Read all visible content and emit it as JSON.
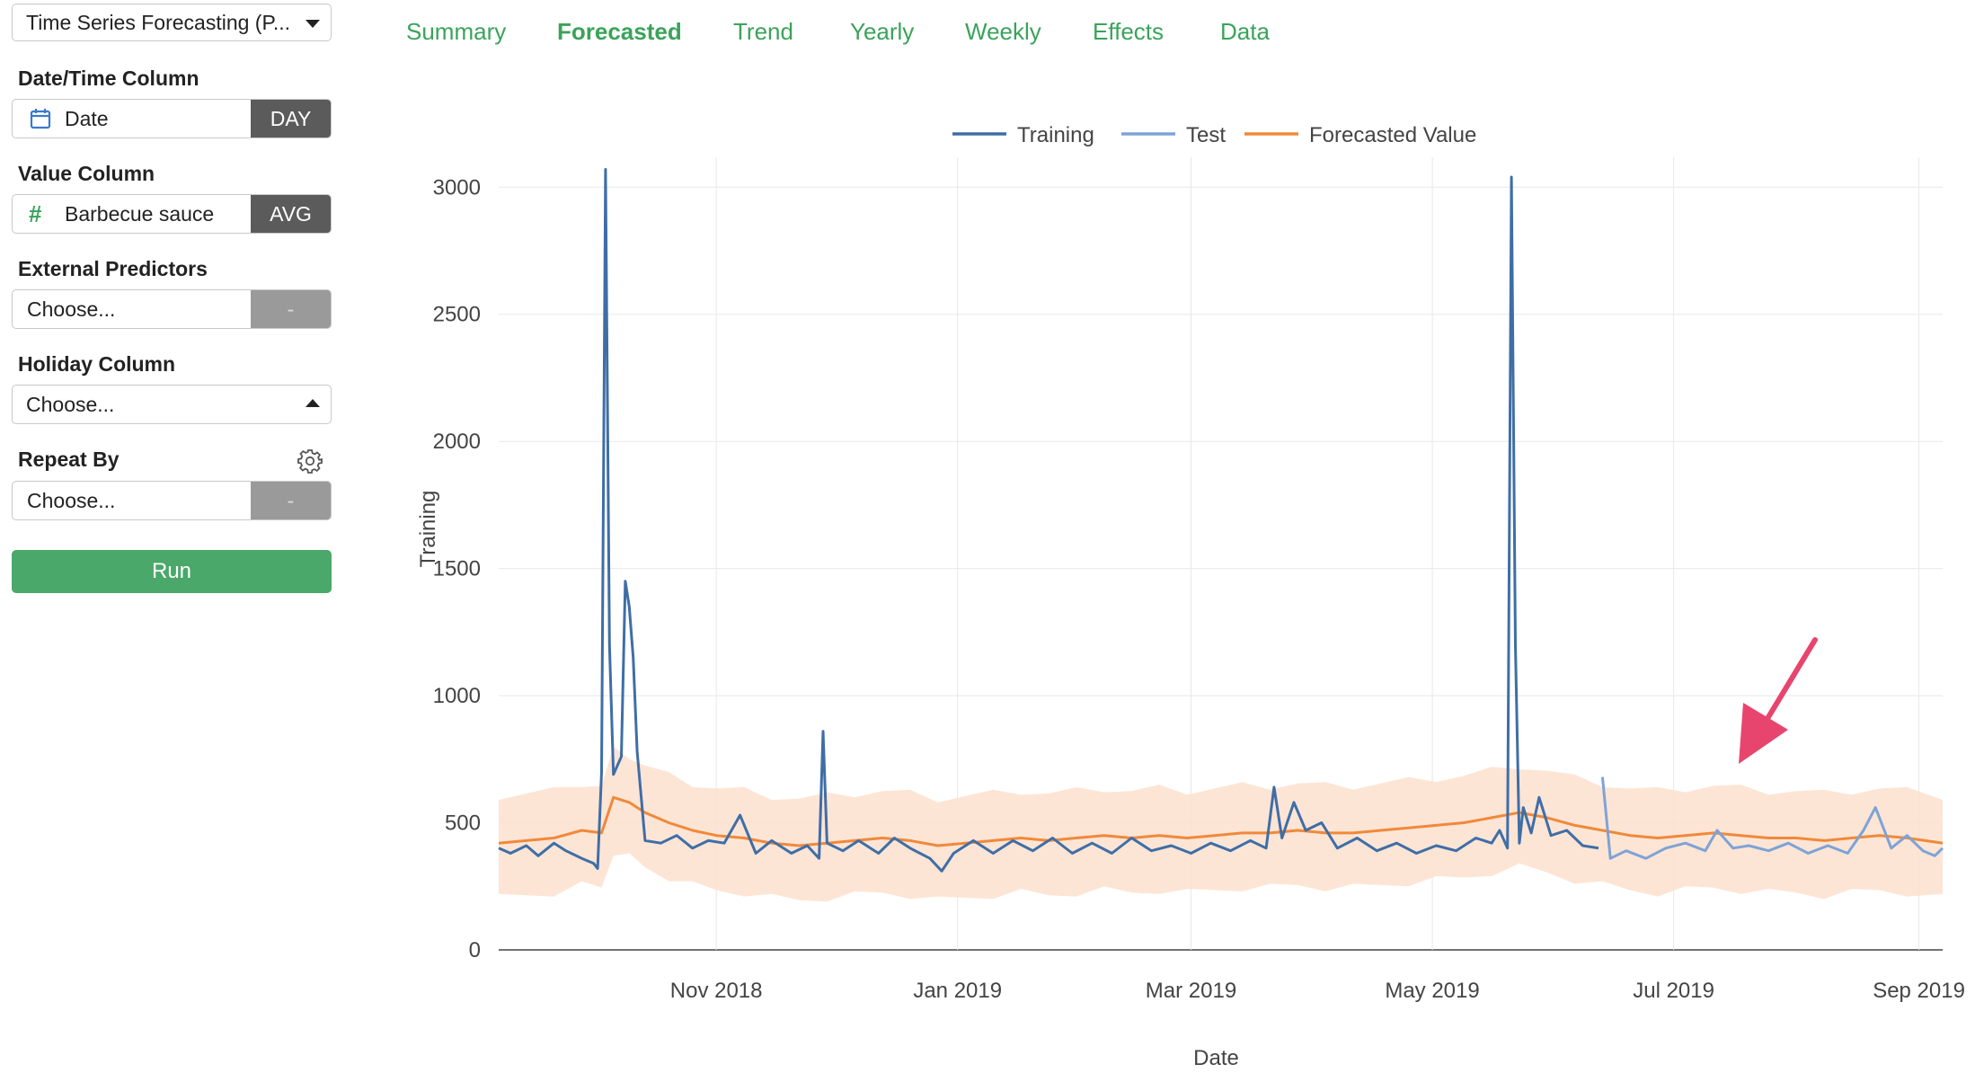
{
  "sidebar": {
    "analytics_select": "Time Series Forecasting (P...",
    "date_label": "Date/Time Column",
    "date_value": "Date",
    "date_unit": "DAY",
    "value_label": "Value Column",
    "value_value": "Barbecue sauce",
    "value_agg": "AVG",
    "predictors_label": "External Predictors",
    "predictors_placeholder": "Choose...",
    "predictors_agg": "-",
    "holiday_label": "Holiday Column",
    "holiday_placeholder": "Choose...",
    "repeat_label": "Repeat By",
    "repeat_placeholder": "Choose...",
    "repeat_agg": "-",
    "run_label": "Run"
  },
  "tabs": [
    "Summary",
    "Forecasted",
    "Trend",
    "Yearly",
    "Weekly",
    "Effects",
    "Data"
  ],
  "active_tab": "Forecasted",
  "colors": {
    "accent": "#3aa35a",
    "training": "#3f6ea6",
    "test": "#7ea3d6",
    "forecast": "#f0893a",
    "band": "#fde1cf",
    "arrow": "#e8456e"
  },
  "chart_data": {
    "type": "line",
    "xlabel": "Date",
    "ylabel": "Training",
    "ylim": [
      0,
      3100
    ],
    "yticks": [
      0,
      500,
      1000,
      1500,
      2000,
      2500,
      3000
    ],
    "x_range": [
      "2018-09-07",
      "2019-09-07"
    ],
    "xticks": [
      {
        "date": "2018-11-01",
        "label": "Nov 2018"
      },
      {
        "date": "2019-01-01",
        "label": "Jan 2019"
      },
      {
        "date": "2019-03-01",
        "label": "Mar 2019"
      },
      {
        "date": "2019-05-01",
        "label": "May 2019"
      },
      {
        "date": "2019-07-01",
        "label": "Jul 2019"
      },
      {
        "date": "2019-09-01",
        "label": "Sep 2019"
      }
    ],
    "legend": [
      "Training",
      "Test",
      "Forecasted Value"
    ],
    "legend_position": "top",
    "grid": true,
    "split_date": "2019-06-13",
    "series": [
      {
        "name": "Training",
        "points": [
          [
            "2018-09-07",
            400
          ],
          [
            "2018-09-10",
            380
          ],
          [
            "2018-09-14",
            410
          ],
          [
            "2018-09-17",
            370
          ],
          [
            "2018-09-21",
            420
          ],
          [
            "2018-09-24",
            390
          ],
          [
            "2018-09-28",
            360
          ],
          [
            "2018-10-01",
            340
          ],
          [
            "2018-10-02",
            320
          ],
          [
            "2018-10-03",
            700
          ],
          [
            "2018-10-04",
            3070
          ],
          [
            "2018-10-05",
            1200
          ],
          [
            "2018-10-06",
            690
          ],
          [
            "2018-10-08",
            760
          ],
          [
            "2018-10-09",
            1450
          ],
          [
            "2018-10-10",
            1350
          ],
          [
            "2018-10-11",
            1150
          ],
          [
            "2018-10-12",
            780
          ],
          [
            "2018-10-14",
            430
          ],
          [
            "2018-10-18",
            420
          ],
          [
            "2018-10-22",
            450
          ],
          [
            "2018-10-26",
            400
          ],
          [
            "2018-10-30",
            430
          ],
          [
            "2018-11-03",
            420
          ],
          [
            "2018-11-07",
            530
          ],
          [
            "2018-11-11",
            380
          ],
          [
            "2018-11-15",
            430
          ],
          [
            "2018-11-20",
            380
          ],
          [
            "2018-11-24",
            410
          ],
          [
            "2018-11-27",
            360
          ],
          [
            "2018-11-28",
            860
          ],
          [
            "2018-11-29",
            420
          ],
          [
            "2018-12-03",
            390
          ],
          [
            "2018-12-07",
            430
          ],
          [
            "2018-12-12",
            380
          ],
          [
            "2018-12-16",
            440
          ],
          [
            "2018-12-20",
            400
          ],
          [
            "2018-12-25",
            360
          ],
          [
            "2018-12-28",
            310
          ],
          [
            "2018-12-31",
            380
          ],
          [
            "2019-01-05",
            430
          ],
          [
            "2019-01-10",
            380
          ],
          [
            "2019-01-15",
            430
          ],
          [
            "2019-01-20",
            390
          ],
          [
            "2019-01-25",
            440
          ],
          [
            "2019-01-30",
            380
          ],
          [
            "2019-02-04",
            420
          ],
          [
            "2019-02-09",
            380
          ],
          [
            "2019-02-14",
            440
          ],
          [
            "2019-02-19",
            390
          ],
          [
            "2019-02-24",
            410
          ],
          [
            "2019-03-01",
            380
          ],
          [
            "2019-03-06",
            420
          ],
          [
            "2019-03-11",
            390
          ],
          [
            "2019-03-16",
            430
          ],
          [
            "2019-03-20",
            400
          ],
          [
            "2019-03-22",
            640
          ],
          [
            "2019-03-24",
            440
          ],
          [
            "2019-03-27",
            580
          ],
          [
            "2019-03-30",
            470
          ],
          [
            "2019-04-03",
            500
          ],
          [
            "2019-04-07",
            400
          ],
          [
            "2019-04-12",
            440
          ],
          [
            "2019-04-17",
            390
          ],
          [
            "2019-04-22",
            420
          ],
          [
            "2019-04-27",
            380
          ],
          [
            "2019-05-02",
            410
          ],
          [
            "2019-05-07",
            390
          ],
          [
            "2019-05-12",
            440
          ],
          [
            "2019-05-16",
            420
          ],
          [
            "2019-05-18",
            470
          ],
          [
            "2019-05-20",
            400
          ],
          [
            "2019-05-21",
            3040
          ],
          [
            "2019-05-22",
            1200
          ],
          [
            "2019-05-23",
            420
          ],
          [
            "2019-05-24",
            560
          ],
          [
            "2019-05-26",
            460
          ],
          [
            "2019-05-28",
            600
          ],
          [
            "2019-05-31",
            450
          ],
          [
            "2019-06-04",
            470
          ],
          [
            "2019-06-08",
            410
          ],
          [
            "2019-06-12",
            400
          ]
        ]
      },
      {
        "name": "Test",
        "points": [
          [
            "2019-06-13",
            680
          ],
          [
            "2019-06-15",
            360
          ],
          [
            "2019-06-19",
            390
          ],
          [
            "2019-06-24",
            360
          ],
          [
            "2019-06-29",
            400
          ],
          [
            "2019-07-04",
            420
          ],
          [
            "2019-07-09",
            390
          ],
          [
            "2019-07-12",
            470
          ],
          [
            "2019-07-16",
            400
          ],
          [
            "2019-07-20",
            410
          ],
          [
            "2019-07-25",
            390
          ],
          [
            "2019-07-30",
            420
          ],
          [
            "2019-08-04",
            380
          ],
          [
            "2019-08-09",
            410
          ],
          [
            "2019-08-14",
            380
          ],
          [
            "2019-08-18",
            470
          ],
          [
            "2019-08-21",
            560
          ],
          [
            "2019-08-25",
            400
          ],
          [
            "2019-08-29",
            450
          ],
          [
            "2019-09-02",
            390
          ],
          [
            "2019-09-05",
            370
          ],
          [
            "2019-09-07",
            400
          ]
        ]
      },
      {
        "name": "Forecasted Value",
        "points": [
          [
            "2018-09-07",
            420
          ],
          [
            "2018-09-14",
            430
          ],
          [
            "2018-09-21",
            440
          ],
          [
            "2018-09-28",
            470
          ],
          [
            "2018-10-03",
            460
          ],
          [
            "2018-10-06",
            600
          ],
          [
            "2018-10-10",
            580
          ],
          [
            "2018-10-14",
            540
          ],
          [
            "2018-10-20",
            500
          ],
          [
            "2018-10-26",
            470
          ],
          [
            "2018-11-01",
            450
          ],
          [
            "2018-11-08",
            440
          ],
          [
            "2018-11-15",
            420
          ],
          [
            "2018-11-22",
            410
          ],
          [
            "2018-11-29",
            420
          ],
          [
            "2018-12-06",
            430
          ],
          [
            "2018-12-13",
            440
          ],
          [
            "2018-12-20",
            430
          ],
          [
            "2018-12-27",
            410
          ],
          [
            "2019-01-03",
            420
          ],
          [
            "2019-01-10",
            430
          ],
          [
            "2019-01-17",
            440
          ],
          [
            "2019-01-24",
            430
          ],
          [
            "2019-01-31",
            440
          ],
          [
            "2019-02-07",
            450
          ],
          [
            "2019-02-14",
            440
          ],
          [
            "2019-02-21",
            450
          ],
          [
            "2019-02-28",
            440
          ],
          [
            "2019-03-07",
            450
          ],
          [
            "2019-03-14",
            460
          ],
          [
            "2019-03-21",
            460
          ],
          [
            "2019-03-28",
            470
          ],
          [
            "2019-04-04",
            460
          ],
          [
            "2019-04-11",
            460
          ],
          [
            "2019-04-18",
            470
          ],
          [
            "2019-04-25",
            480
          ],
          [
            "2019-05-02",
            490
          ],
          [
            "2019-05-09",
            500
          ],
          [
            "2019-05-16",
            520
          ],
          [
            "2019-05-23",
            540
          ],
          [
            "2019-05-30",
            520
          ],
          [
            "2019-06-06",
            490
          ],
          [
            "2019-06-13",
            470
          ],
          [
            "2019-06-20",
            450
          ],
          [
            "2019-06-27",
            440
          ],
          [
            "2019-07-04",
            450
          ],
          [
            "2019-07-11",
            460
          ],
          [
            "2019-07-18",
            450
          ],
          [
            "2019-07-25",
            440
          ],
          [
            "2019-08-01",
            440
          ],
          [
            "2019-08-08",
            430
          ],
          [
            "2019-08-15",
            440
          ],
          [
            "2019-08-22",
            450
          ],
          [
            "2019-08-29",
            440
          ],
          [
            "2019-09-07",
            420
          ]
        ]
      }
    ]
  }
}
